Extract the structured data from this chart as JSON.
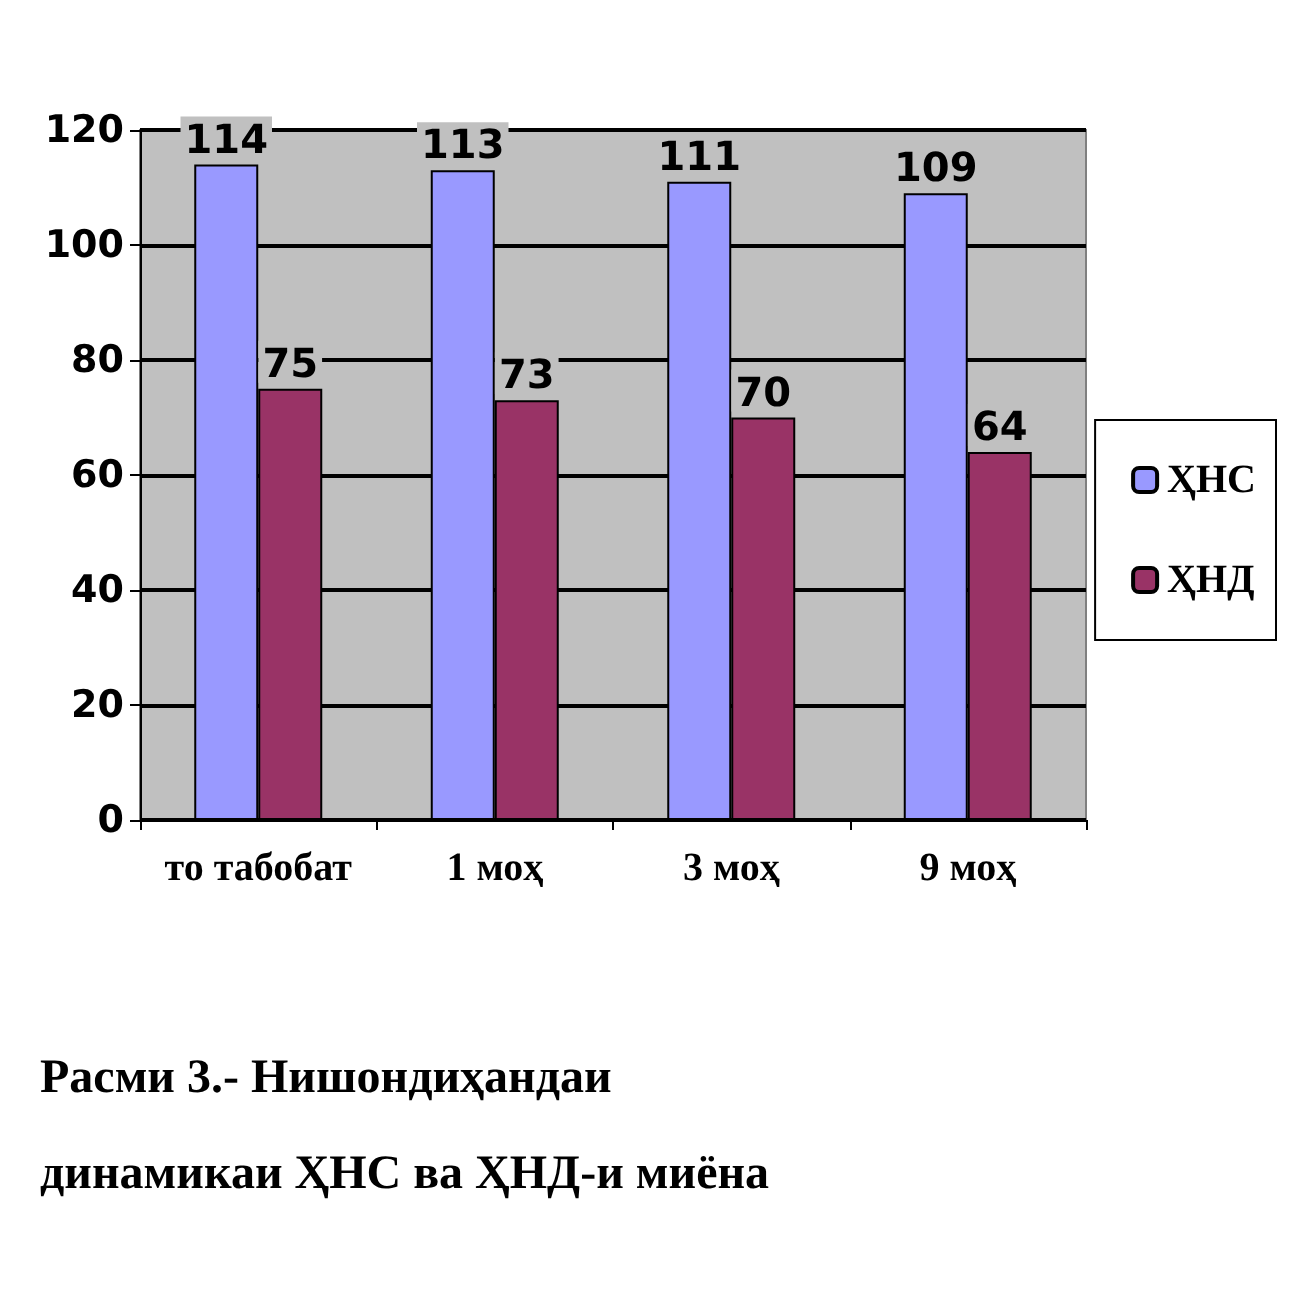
{
  "chart_data": {
    "type": "bar",
    "categories": [
      "то табобат",
      "1 моҳ",
      "3 моҳ",
      "9 моҳ"
    ],
    "series": [
      {
        "name": "ҲНС",
        "color": "#9999ff",
        "values": [
          114,
          113,
          111,
          109
        ]
      },
      {
        "name": "ҲНД",
        "color": "#993366",
        "values": [
          75,
          73,
          70,
          64
        ]
      }
    ],
    "ylim": [
      0,
      120
    ],
    "yticks": [
      0,
      20,
      40,
      60,
      80,
      100,
      120
    ],
    "grid": "y",
    "legend": "right",
    "data_labels": true,
    "annotations": [
      "Расми 3.- Нишондиҳандаи динамикаи ҲНС ва ҲНД-и миёна"
    ]
  }
}
